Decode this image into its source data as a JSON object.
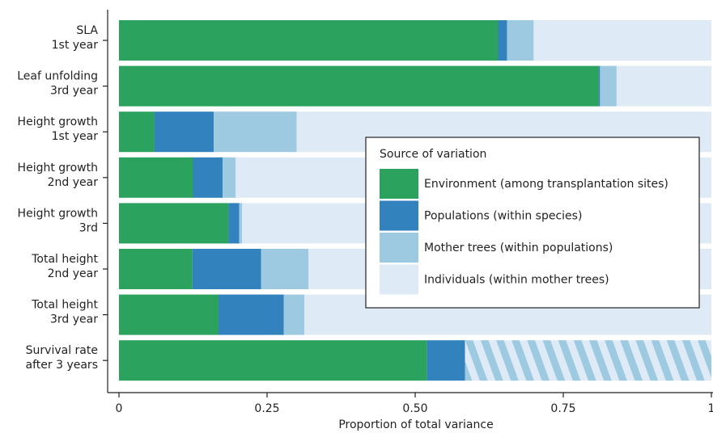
{
  "chart_data": {
    "type": "bar",
    "orientation": "horizontal",
    "stacked": true,
    "xlabel": "Proportion of total variance",
    "xlim": [
      0,
      1
    ],
    "xticks": [
      "0",
      "0.25",
      "0.50",
      "0.75",
      "1"
    ],
    "categories": [
      [
        "SLA",
        "1st year"
      ],
      [
        "Leaf unfolding",
        "3rd year"
      ],
      [
        "Height growth",
        "1st year"
      ],
      [
        "Height growth",
        "2nd year"
      ],
      [
        "Height growth",
        "3rd"
      ],
      [
        "Total height",
        "2nd year"
      ],
      [
        "Total height",
        "3rd year"
      ],
      [
        "Survival rate",
        "after 3 years"
      ]
    ],
    "series": [
      {
        "name": "Environment (among transplantation sites)",
        "color": "#2ca25f",
        "values": [
          0.64,
          0.81,
          0.06,
          0.125,
          0.185,
          0.124,
          0.168,
          0.52
        ]
      },
      {
        "name": "Populations (within species)",
        "color": "#3182bd",
        "values": [
          0.015,
          0.002,
          0.1,
          0.05,
          0.018,
          0.116,
          0.11,
          0.064
        ]
      },
      {
        "name": "Mother trees (within populations)",
        "color": "#9ecae1",
        "values": [
          0.045,
          0.028,
          0.14,
          0.022,
          0.005,
          0.08,
          0.035,
          0
        ]
      },
      {
        "name": "Individuals (within mother trees)",
        "color": "#deebf7",
        "values": [
          0.3,
          0.16,
          0.7,
          0.803,
          0.792,
          0.68,
          0.687,
          0
        ]
      }
    ],
    "hatched_remainder": {
      "row": 7,
      "value": 0.416,
      "colors": [
        "#9ecae1",
        "#deebf7"
      ]
    },
    "legend": {
      "title": "Source of variation",
      "position": "right"
    },
    "grid": false
  }
}
